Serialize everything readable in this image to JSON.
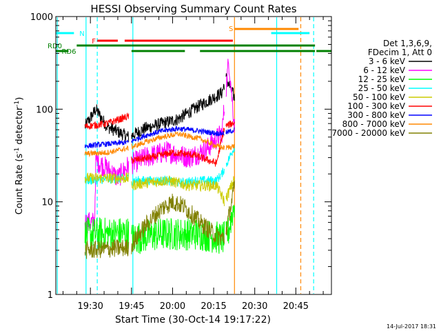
{
  "chart_data": {
    "type": "line",
    "title": "HESSI Observing Summary Count Rates",
    "xlabel": "Start Time (30-Oct-14 19:17:22)",
    "ylabel_main": "Count Rate (s",
    "ylabel_sup1": "-1",
    "ylabel_mid": " detector",
    "ylabel_sup2": "-1",
    "ylabel_end": ")",
    "xlim_min": [
      17.37,
      118.0
    ],
    "ylim": [
      1,
      1000
    ],
    "yscale": "log",
    "x_ticks": [
      {
        "min": 30,
        "label": "19:30"
      },
      {
        "min": 45,
        "label": "19:45"
      },
      {
        "min": 60,
        "label": "20:00"
      },
      {
        "min": 75,
        "label": "20:15"
      },
      {
        "min": 90,
        "label": "20:30"
      },
      {
        "min": 105,
        "label": "20:45"
      }
    ],
    "y_ticks": [
      {
        "v": 1,
        "label": "1"
      },
      {
        "v": 10,
        "label": "10"
      },
      {
        "v": 100,
        "label": "100"
      },
      {
        "v": 1000,
        "label": "1000"
      }
    ],
    "legend": {
      "position": "right",
      "header": [
        "Det 1,3,6,9,",
        "FDecim 1, Att 0"
      ],
      "entries": [
        {
          "label": "3 - 6 keV",
          "color": "#000000"
        },
        {
          "label": "6 - 12 keV",
          "color": "#ff00ff"
        },
        {
          "label": "12 - 25 keV",
          "color": "#00ff00"
        },
        {
          "label": "25 - 50 keV",
          "color": "#00ffff"
        },
        {
          "label": "50 - 100 keV",
          "color": "#cccc00"
        },
        {
          "label": "100 - 300 keV",
          "color": "#ff0000"
        },
        {
          "label": "300 - 800 keV",
          "color": "#0000ff"
        },
        {
          "label": "800 - 7000 keV",
          "color": "#ff8800"
        },
        {
          "label": "7000 - 20000 keV",
          "color": "#808000"
        }
      ]
    },
    "segments": [
      [
        28.0,
        44.0
      ],
      [
        45.0,
        58.0
      ],
      [
        58.0,
        79.0
      ],
      [
        79.5,
        82.7
      ]
    ],
    "series": [
      {
        "name": "3 - 6 keV",
        "color": "#000000",
        "levels": [
          [
            28.0,
            65
          ],
          [
            32.0,
            100
          ],
          [
            36.0,
            65
          ],
          [
            44.0,
            50
          ],
          [
            50.0,
            62
          ],
          [
            56.0,
            70
          ],
          [
            62.0,
            78
          ],
          [
            70.0,
            110
          ],
          [
            78.0,
            150
          ],
          [
            79.5,
            220
          ],
          [
            81.5,
            160
          ],
          [
            82.7,
            130
          ]
        ],
        "noise": 0.07
      },
      {
        "name": "6 - 12 keV",
        "color": "#ff00ff",
        "levels": [
          [
            28.0,
            6
          ],
          [
            31.5,
            6
          ],
          [
            32.0,
            28
          ],
          [
            36.0,
            23
          ],
          [
            40.0,
            18
          ],
          [
            44.0,
            25
          ],
          [
            50.0,
            30
          ],
          [
            58.0,
            35
          ],
          [
            66.0,
            30
          ],
          [
            72.0,
            36
          ],
          [
            78.0,
            55
          ],
          [
            80.5,
            340
          ],
          [
            82.7,
            60
          ]
        ],
        "noise": 0.12
      },
      {
        "name": "12 - 25 keV",
        "color": "#00ff00",
        "levels": [
          [
            28.0,
            4.5
          ],
          [
            44.0,
            4.6
          ],
          [
            45.0,
            4.0
          ],
          [
            56.0,
            4.5
          ],
          [
            70.0,
            4.5
          ],
          [
            78.0,
            4.0
          ],
          [
            80.0,
            4.2
          ],
          [
            82.7,
            10
          ]
        ],
        "noise": 0.18
      },
      {
        "name": "25 - 50 keV",
        "color": "#00ffff",
        "levels": [
          [
            28.0,
            17
          ],
          [
            44.0,
            18
          ],
          [
            45.0,
            17
          ],
          [
            58.0,
            17
          ],
          [
            62.0,
            16
          ],
          [
            70.0,
            17
          ],
          [
            76.0,
            17
          ],
          [
            78.0,
            20
          ],
          [
            82.7,
            40
          ]
        ],
        "noise": 0.05
      },
      {
        "name": "50 - 100 keV",
        "color": "#cccc00",
        "levels": [
          [
            28.0,
            18
          ],
          [
            36.0,
            18
          ],
          [
            44.0,
            18
          ],
          [
            45.0,
            15
          ],
          [
            50.0,
            16
          ],
          [
            58.0,
            17
          ],
          [
            66.0,
            15
          ],
          [
            76.0,
            15
          ],
          [
            79.0,
            10
          ],
          [
            82.7,
            18
          ]
        ],
        "noise": 0.06
      },
      {
        "name": "100 - 300 keV",
        "color": "#ff0000",
        "levels": [
          [
            28.0,
            65
          ],
          [
            36.0,
            70
          ],
          [
            44.0,
            84
          ],
          [
            45.0,
            28
          ],
          [
            52.0,
            30
          ],
          [
            60.0,
            34
          ],
          [
            68.0,
            32
          ],
          [
            76.0,
            26
          ],
          [
            79.0,
            65
          ],
          [
            82.7,
            72
          ]
        ],
        "noise": 0.04
      },
      {
        "name": "300 - 800 keV",
        "color": "#0000ff",
        "levels": [
          [
            28.0,
            40
          ],
          [
            36.0,
            42
          ],
          [
            44.0,
            44
          ],
          [
            50.0,
            52
          ],
          [
            56.0,
            58
          ],
          [
            62.0,
            62
          ],
          [
            70.0,
            58
          ],
          [
            76.0,
            55
          ],
          [
            79.0,
            55
          ],
          [
            82.7,
            60
          ]
        ],
        "noise": 0.03
      },
      {
        "name": "800 - 7000 keV",
        "color": "#ff8800",
        "levels": [
          [
            28.0,
            33
          ],
          [
            36.0,
            34
          ],
          [
            44.0,
            38
          ],
          [
            50.0,
            44
          ],
          [
            56.0,
            50
          ],
          [
            62.0,
            54
          ],
          [
            70.0,
            48
          ],
          [
            76.0,
            40
          ],
          [
            79.0,
            38
          ],
          [
            82.7,
            40
          ]
        ],
        "noise": 0.03
      },
      {
        "name": "7000 - 20000 keV",
        "color": "#808000",
        "levels": [
          [
            28.0,
            3.0
          ],
          [
            44.0,
            3.2
          ],
          [
            45.0,
            3.4
          ],
          [
            50.0,
            5.5
          ],
          [
            56.0,
            8.5
          ],
          [
            60.0,
            10
          ],
          [
            64.0,
            9
          ],
          [
            70.0,
            6
          ],
          [
            76.0,
            4.3
          ],
          [
            79.0,
            4.0
          ],
          [
            82.7,
            15
          ]
        ],
        "noise": 0.1
      }
    ],
    "flags": [
      {
        "label": "RD0",
        "color": "#008000",
        "label_at": 17.37,
        "ranges": [
          [
            25.0,
            45.0
          ],
          [
            45.0,
            112.0
          ]
        ]
      },
      {
        "label": "RD6",
        "color": "#008000",
        "label_at": 19.5,
        "ranges": [
          [
            17.37,
            22.0
          ],
          [
            45.0,
            64.5
          ],
          [
            70.0,
            112.0
          ],
          [
            112.5,
            118.0
          ]
        ]
      },
      {
        "label": "N",
        "color": "#00ffff",
        "label_at": 26.0,
        "ranges": [
          [
            17.37,
            24.0
          ],
          [
            96.0,
            110.0
          ]
        ]
      },
      {
        "label": "F",
        "color": "#ff0000",
        "label_at": 30.5,
        "ranges": [
          [
            32.5,
            40.0
          ],
          [
            42.5,
            82.0
          ]
        ]
      },
      {
        "label": "S",
        "color": "#ff8800",
        "label_at": 80.5,
        "ranges": [
          [
            82.5,
            106.0
          ]
        ]
      }
    ],
    "vlines": [
      {
        "min": 17.9,
        "color": "#00ffff",
        "style": "solid"
      },
      {
        "min": 28.4,
        "color": "#00ffff",
        "style": "solid"
      },
      {
        "min": 32.5,
        "color": "#00ffff",
        "style": "dashed"
      },
      {
        "min": 45.5,
        "color": "#00ffff",
        "style": "solid"
      },
      {
        "min": 82.6,
        "color": "#ff8800",
        "style": "solid"
      },
      {
        "min": 98.0,
        "color": "#00ffff",
        "style": "solid"
      },
      {
        "min": 106.8,
        "color": "#ff8800",
        "style": "dashed"
      },
      {
        "min": 111.5,
        "color": "#00ffff",
        "style": "dashed"
      }
    ],
    "timestamp": "14-Jul-2017 18:31"
  }
}
